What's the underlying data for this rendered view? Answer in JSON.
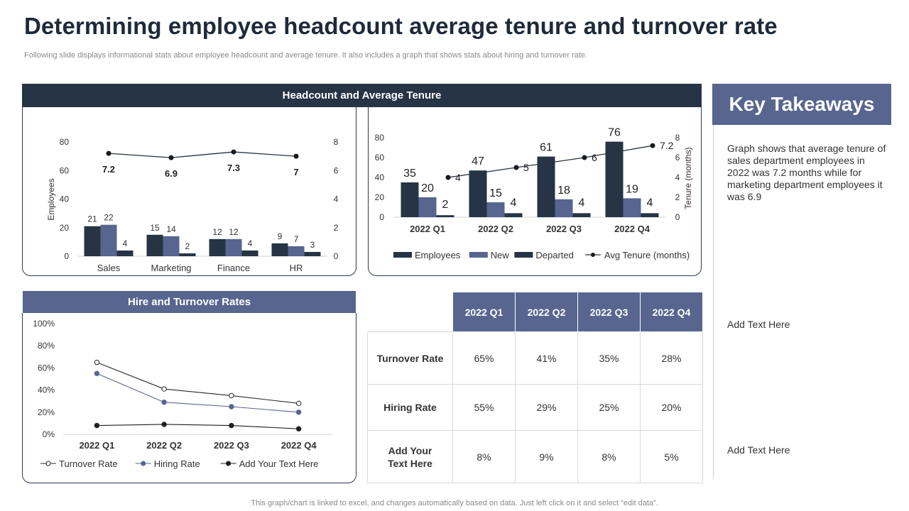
{
  "header": {
    "title": "Determining employee headcount average tenure and turnover rate",
    "subtitle": "Following slide displays informational stats about employee headcount and average tenure. It also includes a graph that shows stats about hiring and turnover rate."
  },
  "panels": {
    "headcount_title": "Headcount and Average Tenure",
    "hire_title": "Hire and Turnover Rates"
  },
  "colors": {
    "dark_navy": "#263445",
    "slate_blue": "#57658f",
    "header_navy": "#263445"
  },
  "chart_data": [
    {
      "id": "dept",
      "type": "bar",
      "categories": [
        "Sales",
        "Marketing",
        "Finance",
        "HR"
      ],
      "series": [
        {
          "values": [
            21,
            15,
            12,
            9
          ],
          "color": "#263445"
        },
        {
          "values": [
            22,
            14,
            12,
            7
          ],
          "color": "#57658f"
        },
        {
          "values": [
            4,
            2,
            4,
            3
          ],
          "color": "#263445"
        }
      ],
      "line": {
        "values": [
          7.2,
          6.9,
          7.3,
          7
        ],
        "labels": [
          "7.2",
          "6.9",
          "7.3",
          "7"
        ]
      },
      "ylabel": "Employees",
      "ylim": [
        0,
        80
      ],
      "yticks": [
        "0",
        "20",
        "40",
        "60",
        "80"
      ],
      "y2lim": [
        0,
        8
      ],
      "y2ticks": [
        "0",
        "2",
        "4",
        "6",
        "8"
      ]
    },
    {
      "id": "quarter",
      "type": "bar",
      "categories": [
        "2022 Q1",
        "2022 Q2",
        "2022 Q3",
        "2022 Q4"
      ],
      "series": [
        {
          "name": "Employees",
          "values": [
            35,
            47,
            61,
            76
          ],
          "color": "#263445"
        },
        {
          "name": "New",
          "values": [
            20,
            15,
            18,
            19
          ],
          "color": "#57658f"
        },
        {
          "name": "Departed",
          "values": [
            2,
            4,
            4,
            4
          ],
          "color": "#263445"
        }
      ],
      "line": {
        "name": "Avg Tenure (months)",
        "values": [
          4,
          5,
          6,
          7.2
        ],
        "labels": [
          "4",
          "5",
          "6",
          "7.2"
        ]
      },
      "ylim": [
        0,
        80
      ],
      "yticks": [
        "0",
        "20",
        "40",
        "60",
        "80"
      ],
      "y2label": "Tenure (months)",
      "y2lim": [
        0,
        8
      ],
      "y2ticks": [
        "0",
        "2",
        "4",
        "6",
        "8"
      ],
      "legend": "bottom"
    },
    {
      "id": "rates",
      "type": "line",
      "categories": [
        "2022 Q1",
        "2022 Q2",
        "2022 Q3",
        "2022 Q4"
      ],
      "series": [
        {
          "name": "Turnover Rate",
          "values": [
            65,
            41,
            35,
            28
          ],
          "marker": "hollow"
        },
        {
          "name": "Hiring Rate",
          "values": [
            55,
            29,
            25,
            20
          ],
          "marker": "blue"
        },
        {
          "name": "Add Your Text Here",
          "values": [
            8,
            9,
            8,
            5
          ],
          "marker": "dark"
        }
      ],
      "ylim": [
        0,
        100
      ],
      "yticks": [
        "0%",
        "20%",
        "40%",
        "60%",
        "80%",
        "100%"
      ],
      "legend": "bottom"
    }
  ],
  "table": {
    "headers": [
      "2022 Q1",
      "2022 Q2",
      "2022 Q3",
      "2022 Q4"
    ],
    "rows": [
      {
        "label": "Turnover Rate",
        "values": [
          "65%",
          "41%",
          "35%",
          "28%"
        ]
      },
      {
        "label": "Hiring Rate",
        "values": [
          "55%",
          "29%",
          "25%",
          "20%"
        ]
      },
      {
        "label": "Add Your Text Here",
        "values": [
          "8%",
          "9%",
          "8%",
          "5%"
        ]
      }
    ]
  },
  "takeaways": {
    "title": "Key Takeaways",
    "items": [
      "Graph shows that average tenure of sales department employees in 2022 was 7.2 months while for marketing department employees it was 6.9",
      "Add Text Here",
      "Add Text Here"
    ]
  },
  "footer": "This graph/chart is linked to excel, and changes automatically based on data. Just left click on it and select “edit data”."
}
